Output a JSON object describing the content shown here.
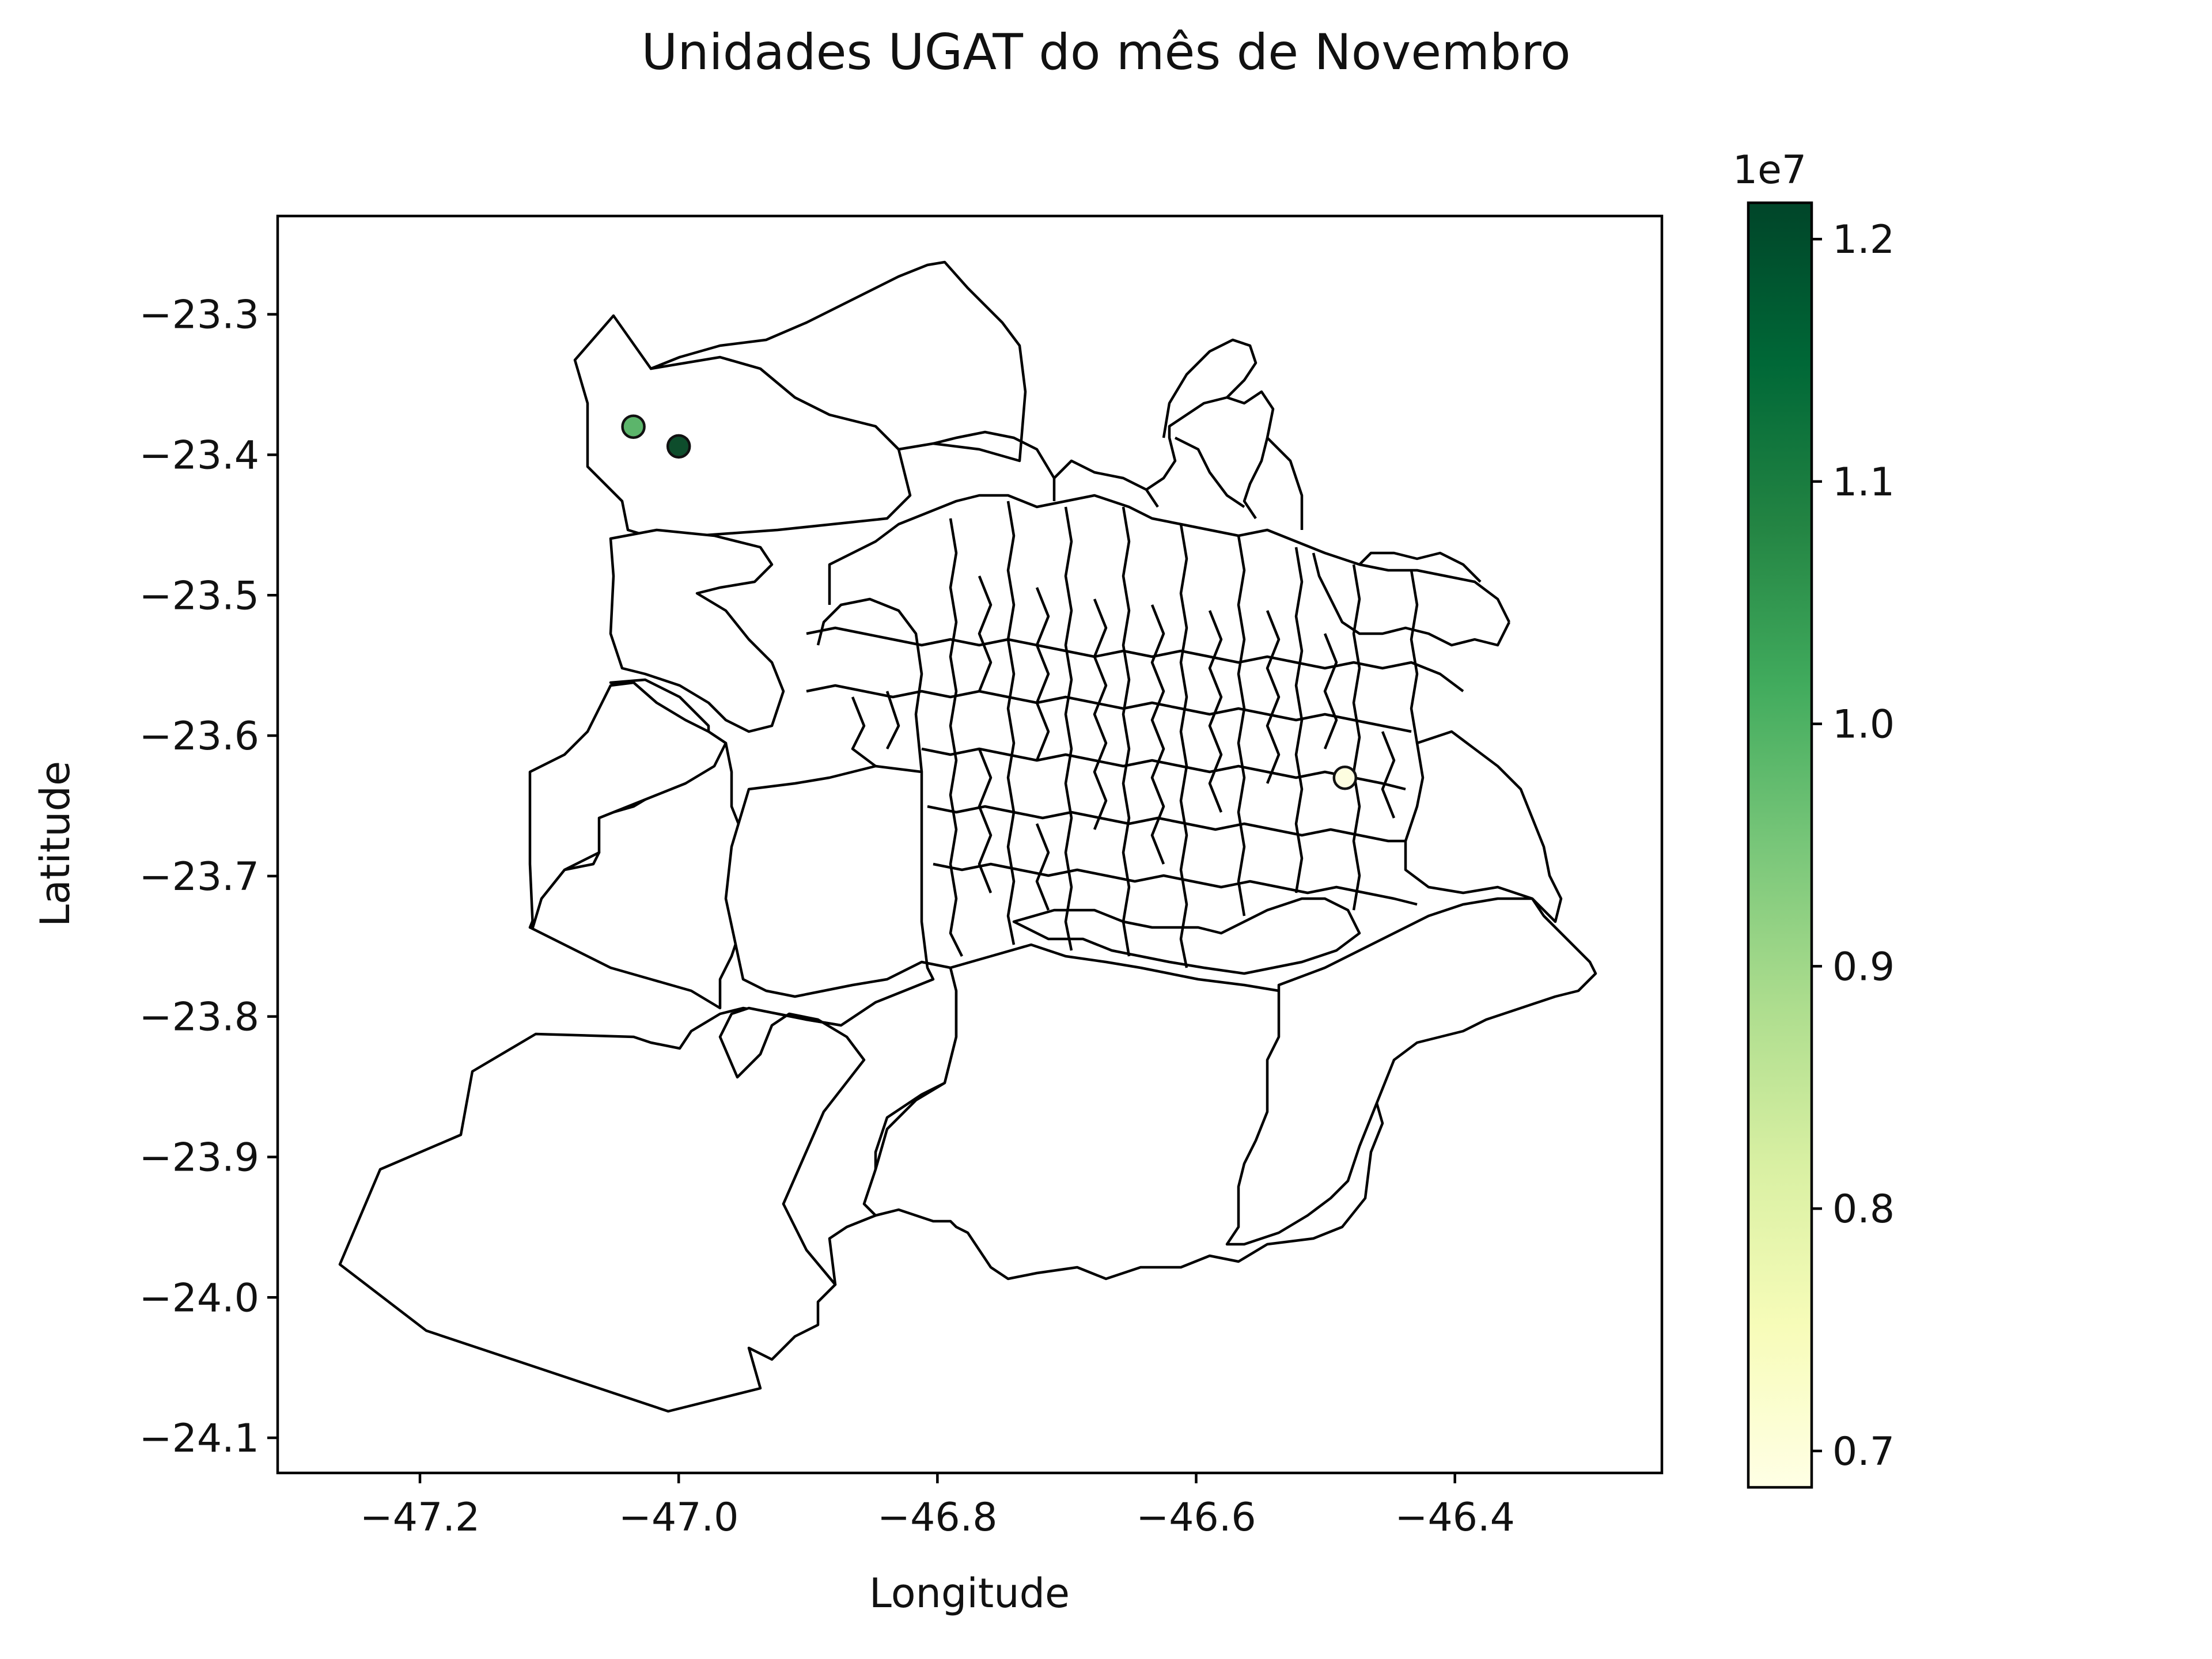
{
  "title": "Unidades UGAT do mês de Novembro",
  "xlabel": "Longitude",
  "ylabel": "Latitude",
  "colorbar": {
    "multiplier": "1e7",
    "colormap": "YlGn",
    "min": 0.685,
    "max": 1.215,
    "ticks": [
      0.7,
      0.8,
      0.9,
      1.0,
      1.1,
      1.2
    ],
    "tick_labels": [
      "0.7",
      "0.8",
      "0.9",
      "1.0",
      "1.1",
      "1.2"
    ],
    "stops": [
      "#ffffe5",
      "#f7fcb9",
      "#d9f0a3",
      "#addd8e",
      "#78c679",
      "#41ab5d",
      "#238443",
      "#006837",
      "#004529"
    ]
  },
  "chart_data": {
    "type": "scatter",
    "title": "Unidades UGAT do mês de Novembro",
    "xlabel": "Longitude",
    "ylabel": "Latitude",
    "xlim": [
      -47.31,
      -46.24
    ],
    "ylim": [
      -24.125,
      -23.23
    ],
    "xticks": [
      -47.2,
      -47.0,
      -46.8,
      -46.6,
      -46.4
    ],
    "xtick_labels": [
      "−47.2",
      "−47.0",
      "−46.8",
      "−46.6",
      "−46.4"
    ],
    "yticks": [
      -23.3,
      -23.4,
      -23.5,
      -23.6,
      -23.7,
      -23.8,
      -23.9,
      -24.0,
      -24.1
    ],
    "ytick_labels": [
      "−23.3",
      "−23.4",
      "−23.5",
      "−23.6",
      "−23.7",
      "−23.8",
      "−23.9",
      "−24.0",
      "−24.1"
    ],
    "points": [
      {
        "lon": -47.035,
        "lat": -23.38,
        "value": 0.99,
        "color": "#5cb56b"
      },
      {
        "lon": -47.0,
        "lat": -23.394,
        "value": 1.21,
        "color": "#0e4d2c"
      },
      {
        "lon": -46.485,
        "lat": -23.63,
        "value": 0.69,
        "color": "#fdfde0"
      }
    ],
    "value_scale": "1e7",
    "grid": false,
    "legend": "colorbar-right",
    "basemap": "municipal / district boundary outlines"
  }
}
